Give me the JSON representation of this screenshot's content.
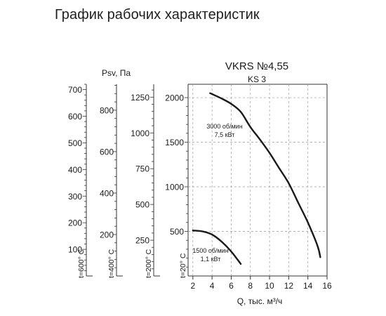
{
  "page_title": "График рабочих характеристик",
  "chart_data": {
    "type": "line",
    "title": "VKRS №4,55",
    "subtitle": "KS 3",
    "xlabel": "Q, тыс. м³/ч",
    "ylabel": "Psv, Па",
    "xlim": [
      1.5,
      16
    ],
    "x_ticks": [
      2,
      4,
      6,
      8,
      10,
      12,
      14,
      16
    ],
    "grid": true,
    "grid_style": "dashed",
    "y_axes": [
      {
        "label": "t=20° C",
        "ylim": [
          0,
          2150
        ],
        "ticks": [
          500,
          1000,
          1500,
          2000
        ],
        "minor_step": 100,
        "primary": true
      },
      {
        "label": "t=200° C",
        "ylim": [
          0,
          1340
        ],
        "ticks": [
          250,
          500,
          750,
          1000,
          1250
        ],
        "minor_step": 50
      },
      {
        "label": "t=400° C",
        "ylim": [
          0,
          925
        ],
        "ticks": [
          200,
          400,
          600,
          800
        ],
        "minor_step": 40
      },
      {
        "label": "t=600° C",
        "ylim": [
          0,
          720
        ],
        "ticks": [
          100,
          200,
          300,
          400,
          500,
          600,
          700
        ],
        "minor_step": 20
      }
    ],
    "series": [
      {
        "annotation": [
          "3000 об/мин",
          "7,5 кВт"
        ],
        "x": [
          3.8,
          5,
          6,
          7,
          8,
          9,
          10,
          11,
          12,
          13,
          14,
          15,
          15.3
        ],
        "y": [
          2050,
          1990,
          1930,
          1840,
          1670,
          1530,
          1380,
          1210,
          1040,
          820,
          600,
          340,
          210
        ]
      },
      {
        "annotation": [
          "1500 об/мин",
          "1,1 кВт"
        ],
        "x": [
          2,
          3,
          4,
          5,
          6,
          7
        ],
        "y": [
          510,
          500,
          465,
          385,
          275,
          135
        ]
      }
    ]
  }
}
